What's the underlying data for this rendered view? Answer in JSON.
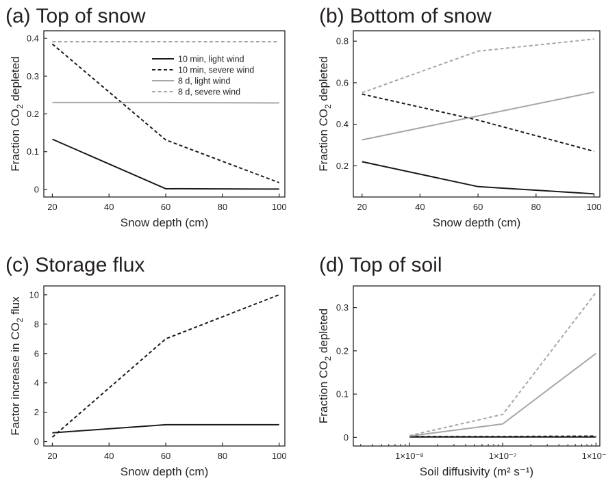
{
  "legend": [
    {
      "name": "10 min, light wind",
      "color": "#1a1a1a",
      "dash": "solid"
    },
    {
      "name": "10 min, severe wind",
      "color": "#1a1a1a",
      "dash": "dashed"
    },
    {
      "name": "8 d, light wind",
      "color": "#a6a6a6",
      "dash": "solid"
    },
    {
      "name": "8 d, severe wind",
      "color": "#a6a6a6",
      "dash": "dashed"
    }
  ],
  "chart_data": [
    {
      "type": "line",
      "title": "(a) Top of snow",
      "xlabel": "Snow depth (cm)",
      "ylabel": "Fraction CO2 depleted",
      "ylabel_parts": [
        "Fraction CO",
        "2",
        " depleted"
      ],
      "xlim": [
        17,
        102
      ],
      "ylim": [
        -0.02,
        0.42
      ],
      "xticks": [
        20,
        40,
        60,
        80,
        100
      ],
      "xtick_labels": [
        "20",
        "40",
        "60",
        "80",
        "100"
      ],
      "yticks": [
        0,
        0.1,
        0.2,
        0.3,
        0.4
      ],
      "ytick_labels": [
        "0",
        "0.1",
        "0.2",
        "0.3",
        "0.4"
      ],
      "legend_position": "top-right",
      "series": [
        {
          "name": "10 min, light wind",
          "x": [
            20,
            60,
            100
          ],
          "y": [
            0.133,
            0.002,
            0.001
          ]
        },
        {
          "name": "10 min, severe wind",
          "x": [
            20,
            60,
            100
          ],
          "y": [
            0.385,
            0.131,
            0.018
          ]
        },
        {
          "name": "8 d, light wind",
          "x": [
            20,
            60,
            100
          ],
          "y": [
            0.23,
            0.23,
            0.229
          ]
        },
        {
          "name": "8 d, severe wind",
          "x": [
            20,
            60,
            100
          ],
          "y": [
            0.391,
            0.391,
            0.391
          ]
        }
      ]
    },
    {
      "type": "line",
      "title": "(b) Bottom of snow",
      "xlabel": "Snow depth (cm)",
      "ylabel": "Fraction CO2 depleted",
      "ylabel_parts": [
        "Fraction CO",
        "2",
        " depleted"
      ],
      "xlim": [
        17,
        102
      ],
      "ylim": [
        0.05,
        0.85
      ],
      "xticks": [
        20,
        40,
        60,
        80,
        100
      ],
      "xtick_labels": [
        "20",
        "40",
        "60",
        "80",
        "100"
      ],
      "yticks": [
        0.2,
        0.4,
        0.6,
        0.8
      ],
      "ytick_labels": [
        "0.2",
        "0.4",
        "0.6",
        "0.8"
      ],
      "series": [
        {
          "name": "10 min, light wind",
          "x": [
            20,
            60,
            100
          ],
          "y": [
            0.22,
            0.1,
            0.065
          ]
        },
        {
          "name": "10 min, severe wind",
          "x": [
            20,
            60,
            100
          ],
          "y": [
            0.545,
            0.42,
            0.27
          ]
        },
        {
          "name": "8 d, light wind",
          "x": [
            20,
            60,
            100
          ],
          "y": [
            0.325,
            0.44,
            0.555
          ]
        },
        {
          "name": "8 d, severe wind",
          "x": [
            20,
            60,
            100
          ],
          "y": [
            0.552,
            0.752,
            0.81
          ]
        }
      ]
    },
    {
      "type": "line",
      "title": "(c) Storage flux",
      "xlabel": "Snow depth (cm)",
      "ylabel": "Factor increase in CO2 flux",
      "ylabel_parts": [
        "Factor increase in CO",
        "2",
        " flux"
      ],
      "xlim": [
        17,
        102
      ],
      "ylim": [
        -0.3,
        10.6
      ],
      "xticks": [
        20,
        40,
        60,
        80,
        100
      ],
      "xtick_labels": [
        "20",
        "40",
        "60",
        "80",
        "100"
      ],
      "yticks": [
        0,
        2,
        4,
        6,
        8,
        10
      ],
      "ytick_labels": [
        "0",
        "2",
        "4",
        "6",
        "8",
        "10"
      ],
      "series": [
        {
          "name": "10 min, light wind",
          "x": [
            20,
            60,
            100
          ],
          "y": [
            0.6,
            1.15,
            1.15
          ]
        },
        {
          "name": "10 min, severe wind",
          "x": [
            20,
            60,
            100
          ],
          "y": [
            0.3,
            7.0,
            10.0
          ]
        }
      ]
    },
    {
      "type": "line",
      "title": "(d) Top of soil",
      "xlabel": "Soil diffusivity (m² s⁻¹)",
      "ylabel": "Fraction CO2 depleted",
      "ylabel_parts": [
        "Fraction CO",
        "2",
        " depleted"
      ],
      "xscale": "log",
      "xlim": [
        2.5e-09,
        1.1e-06
      ],
      "ylim": [
        -0.02,
        0.35
      ],
      "xticks": [
        1e-08,
        1e-07,
        1e-06
      ],
      "xtick_labels": [
        "1×10⁻⁸",
        "1×10⁻⁷",
        "1×10⁻⁶"
      ],
      "yticks": [
        0,
        0.1,
        0.2,
        0.3
      ],
      "ytick_labels": [
        "0",
        "0.1",
        "0.2",
        "0.3"
      ],
      "series": [
        {
          "name": "10 min, light wind",
          "x": [
            1e-08,
            1e-07,
            1e-06
          ],
          "y": [
            0.001,
            0.001,
            0.001
          ]
        },
        {
          "name": "10 min, severe wind",
          "x": [
            1e-08,
            1e-07,
            1e-06
          ],
          "y": [
            0.002,
            0.002,
            0.003
          ]
        },
        {
          "name": "8 d, light wind",
          "x": [
            1e-08,
            1e-07,
            1e-06
          ],
          "y": [
            0.003,
            0.031,
            0.194
          ]
        },
        {
          "name": "8 d, severe wind",
          "x": [
            1e-08,
            1e-07,
            1e-06
          ],
          "y": [
            0.004,
            0.053,
            0.335
          ]
        }
      ]
    }
  ]
}
